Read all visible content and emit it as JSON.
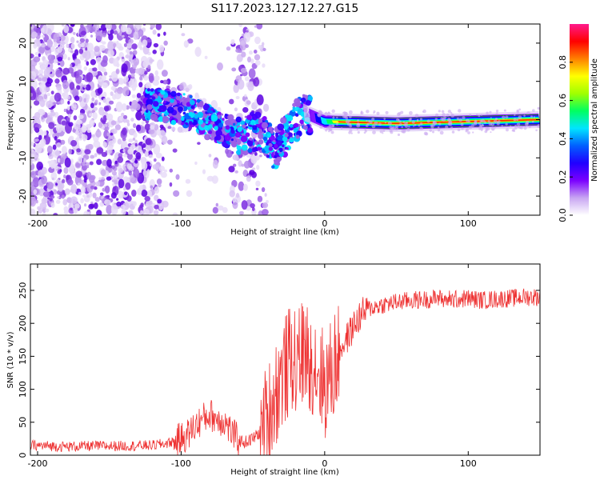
{
  "figure": {
    "title": "S117.2023.127.12.27.G15"
  },
  "chart_data": [
    {
      "type": "heatmap",
      "xlabel": "Height of straight line (km)",
      "ylabel": "Frequency (Hz)",
      "xlim": [
        -205,
        150
      ],
      "ylim": [
        -25,
        25
      ],
      "xticks": [
        -200,
        -100,
        0,
        100
      ],
      "yticks": [
        -20,
        -10,
        0,
        10,
        20
      ],
      "colorbar": {
        "label": "Normalized spectral amplitude",
        "range": [
          0,
          1
        ],
        "ticks": [
          "0.0",
          "0.2",
          "0.4",
          "0.6",
          "0.8"
        ],
        "tick_values": [
          0.0,
          0.2,
          0.4,
          0.6,
          0.8
        ],
        "colormap": [
          "#ffffff",
          "#c9a8f0",
          "#8a2be2",
          "#3a00e0",
          "#0000ff",
          "#00ffff",
          "#00ff00",
          "#ffff00",
          "#ff8000",
          "#ff0000",
          "#ff1493"
        ]
      },
      "description_ridge": [
        {
          "x": -120,
          "y": 4
        },
        {
          "x": -95,
          "y": 2.5
        },
        {
          "x": -80,
          "y": -1
        },
        {
          "x": -60,
          "y": -4
        },
        {
          "x": -45,
          "y": -3
        },
        {
          "x": -35,
          "y": -8
        },
        {
          "x": -15,
          "y": 2
        },
        {
          "x": 0,
          "y": -0.5
        },
        {
          "x": 50,
          "y": -1
        },
        {
          "x": 100,
          "y": -0.5
        },
        {
          "x": 150,
          "y": 0
        }
      ]
    },
    {
      "type": "line",
      "xlabel": "Height of straight line (km)",
      "ylabel": "SNR (10 * v/v)",
      "xlim": [
        -205,
        150
      ],
      "ylim": [
        0,
        290
      ],
      "xticks": [
        -200,
        -100,
        0,
        100
      ],
      "yticks": [
        0,
        50,
        100,
        150,
        200,
        250
      ],
      "color": "#ee3333",
      "series": [
        {
          "x": [
            -205,
            -180,
            -160,
            -140,
            -120,
            -110,
            -100,
            -95,
            -90,
            -85,
            -80,
            -75,
            -70,
            -65,
            -60,
            -55,
            -50,
            -45,
            -40,
            -35,
            -30,
            -25,
            -20,
            -15,
            -10,
            -5,
            0,
            5,
            10,
            15,
            20,
            25,
            30,
            40,
            50,
            60,
            70,
            80,
            90,
            100,
            110,
            120,
            130,
            140,
            150
          ],
          "values": [
            15,
            13,
            14,
            14,
            15,
            18,
            25,
            32,
            45,
            55,
            62,
            55,
            52,
            35,
            22,
            20,
            25,
            35,
            55,
            90,
            120,
            140,
            150,
            155,
            150,
            135,
            105,
            125,
            160,
            175,
            195,
            212,
            222,
            228,
            232,
            235,
            236,
            238,
            236,
            238,
            235,
            237,
            238,
            240,
            240
          ]
        }
      ]
    }
  ]
}
